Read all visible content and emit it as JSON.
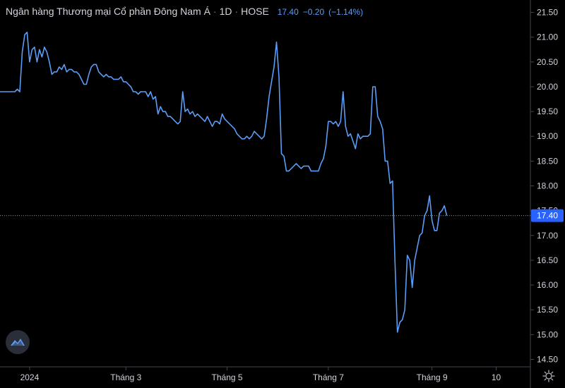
{
  "header": {
    "symbol_name": "Ngân hàng Thương mại Cổ phần Đông Nam Á",
    "interval": "1D",
    "exchange": "HOSE",
    "last": "17.40",
    "change": "−0.20",
    "change_pct": "(−1.14%)"
  },
  "colors": {
    "line": "#5b9cf6",
    "background": "#000000",
    "axis_text": "#d1d4dc",
    "price_tag": "#2962ff"
  },
  "icons": {
    "logo": "tradingview-logo-icon",
    "settings": "gear-icon"
  },
  "chart_data": {
    "type": "line",
    "title": "",
    "xlabel": "",
    "ylabel": "",
    "y_ticks": [
      "21.50",
      "21.00",
      "20.50",
      "20.00",
      "19.50",
      "19.00",
      "18.50",
      "18.00",
      "17.50",
      "17.00",
      "16.50",
      "16.00",
      "15.50",
      "15.00",
      "14.50"
    ],
    "x_ticks": [
      "2024",
      "Tháng 3",
      "Tháng 5",
      "Tháng 7",
      "Tháng 9",
      "10"
    ],
    "x_tick_positions": [
      12,
      51,
      92,
      133,
      175,
      201
    ],
    "ylim": [
      14.35,
      21.75
    ],
    "xlim": [
      0,
      212
    ],
    "last_price_label": "17.40",
    "series": [
      {
        "values": [
          19.9,
          19.9,
          19.9,
          19.9,
          19.9,
          19.9,
          19.9,
          19.95,
          19.9,
          20.7,
          21.05,
          21.1,
          20.5,
          20.75,
          20.8,
          20.5,
          20.75,
          20.6,
          20.8,
          20.7,
          20.5,
          20.25,
          20.3,
          20.3,
          20.4,
          20.35,
          20.45,
          20.3,
          20.35,
          20.35,
          20.3,
          20.3,
          20.25,
          20.15,
          20.05,
          20.05,
          20.25,
          20.4,
          20.45,
          20.45,
          20.3,
          20.25,
          20.2,
          20.25,
          20.2,
          20.2,
          20.15,
          20.15,
          20.15,
          20.2,
          20.1,
          20.1,
          20.05,
          20.0,
          19.9,
          19.9,
          19.85,
          19.9,
          19.9,
          19.9,
          19.8,
          19.9,
          19.75,
          19.8,
          19.45,
          19.6,
          19.5,
          19.5,
          19.4,
          19.4,
          19.35,
          19.3,
          19.25,
          19.3,
          19.9,
          19.5,
          19.55,
          19.45,
          19.5,
          19.4,
          19.45,
          19.4,
          19.35,
          19.3,
          19.4,
          19.3,
          19.2,
          19.3,
          19.3,
          19.25,
          19.45,
          19.35,
          19.3,
          19.25,
          19.2,
          19.15,
          19.05,
          19.0,
          18.95,
          18.95,
          19.0,
          18.95,
          19.0,
          19.1,
          19.05,
          19.0,
          18.95,
          19.0,
          19.35,
          19.8,
          20.1,
          20.4,
          20.9,
          20.2,
          18.65,
          18.6,
          18.3,
          18.3,
          18.35,
          18.4,
          18.45,
          18.4,
          18.35,
          18.4,
          18.4,
          18.4,
          18.3,
          18.3,
          18.3,
          18.3,
          18.45,
          18.55,
          18.8,
          19.3,
          19.3,
          19.25,
          19.3,
          19.2,
          19.3,
          19.9,
          19.2,
          19.0,
          19.05,
          18.9,
          18.75,
          19.05,
          18.95,
          19.0,
          19.0,
          19.0,
          19.05,
          20.0,
          20.0,
          19.4,
          19.3,
          19.15,
          18.5,
          18.5,
          18.05,
          18.1,
          16.5,
          15.05,
          15.25,
          15.3,
          15.5,
          16.6,
          16.5,
          15.95,
          16.5,
          16.75,
          17.0,
          17.05,
          17.4,
          17.5,
          17.8,
          17.3,
          17.1,
          17.1,
          17.45,
          17.5,
          17.6,
          17.4
        ]
      }
    ]
  }
}
